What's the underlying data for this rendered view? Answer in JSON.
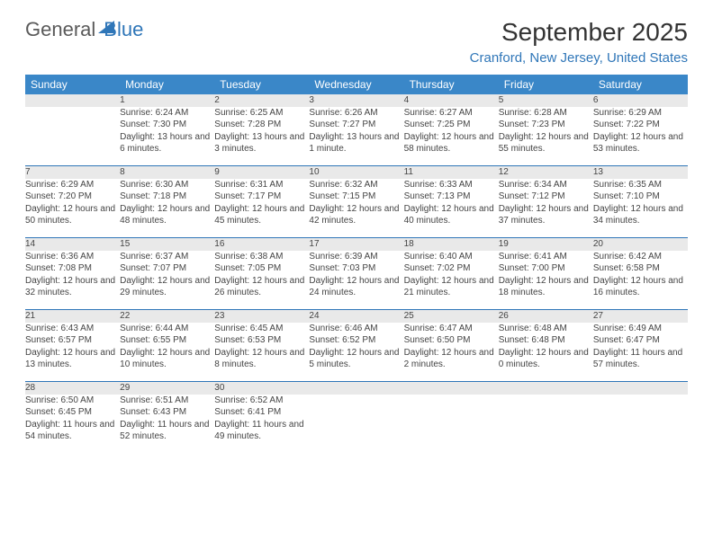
{
  "brand": {
    "part1": "General",
    "part2": "Blue"
  },
  "title": "September 2025",
  "location": "Cranford, New Jersey, United States",
  "weekdays": [
    "Sunday",
    "Monday",
    "Tuesday",
    "Wednesday",
    "Thursday",
    "Friday",
    "Saturday"
  ],
  "colors": {
    "header_bg": "#3a87c8",
    "header_fg": "#ffffff",
    "daynum_bg": "#e9e9e9",
    "rule": "#2f76b8",
    "accent": "#2f76b8"
  },
  "typography": {
    "title_fontsize": 28,
    "location_fontsize": 15,
    "weekday_fontsize": 12,
    "cell_fontsize": 10
  },
  "weeks": [
    [
      null,
      {
        "n": "1",
        "sunrise": "6:24 AM",
        "sunset": "7:30 PM",
        "daylight": "13 hours and 6 minutes."
      },
      {
        "n": "2",
        "sunrise": "6:25 AM",
        "sunset": "7:28 PM",
        "daylight": "13 hours and 3 minutes."
      },
      {
        "n": "3",
        "sunrise": "6:26 AM",
        "sunset": "7:27 PM",
        "daylight": "13 hours and 1 minute."
      },
      {
        "n": "4",
        "sunrise": "6:27 AM",
        "sunset": "7:25 PM",
        "daylight": "12 hours and 58 minutes."
      },
      {
        "n": "5",
        "sunrise": "6:28 AM",
        "sunset": "7:23 PM",
        "daylight": "12 hours and 55 minutes."
      },
      {
        "n": "6",
        "sunrise": "6:29 AM",
        "sunset": "7:22 PM",
        "daylight": "12 hours and 53 minutes."
      }
    ],
    [
      {
        "n": "7",
        "sunrise": "6:29 AM",
        "sunset": "7:20 PM",
        "daylight": "12 hours and 50 minutes."
      },
      {
        "n": "8",
        "sunrise": "6:30 AM",
        "sunset": "7:18 PM",
        "daylight": "12 hours and 48 minutes."
      },
      {
        "n": "9",
        "sunrise": "6:31 AM",
        "sunset": "7:17 PM",
        "daylight": "12 hours and 45 minutes."
      },
      {
        "n": "10",
        "sunrise": "6:32 AM",
        "sunset": "7:15 PM",
        "daylight": "12 hours and 42 minutes."
      },
      {
        "n": "11",
        "sunrise": "6:33 AM",
        "sunset": "7:13 PM",
        "daylight": "12 hours and 40 minutes."
      },
      {
        "n": "12",
        "sunrise": "6:34 AM",
        "sunset": "7:12 PM",
        "daylight": "12 hours and 37 minutes."
      },
      {
        "n": "13",
        "sunrise": "6:35 AM",
        "sunset": "7:10 PM",
        "daylight": "12 hours and 34 minutes."
      }
    ],
    [
      {
        "n": "14",
        "sunrise": "6:36 AM",
        "sunset": "7:08 PM",
        "daylight": "12 hours and 32 minutes."
      },
      {
        "n": "15",
        "sunrise": "6:37 AM",
        "sunset": "7:07 PM",
        "daylight": "12 hours and 29 minutes."
      },
      {
        "n": "16",
        "sunrise": "6:38 AM",
        "sunset": "7:05 PM",
        "daylight": "12 hours and 26 minutes."
      },
      {
        "n": "17",
        "sunrise": "6:39 AM",
        "sunset": "7:03 PM",
        "daylight": "12 hours and 24 minutes."
      },
      {
        "n": "18",
        "sunrise": "6:40 AM",
        "sunset": "7:02 PM",
        "daylight": "12 hours and 21 minutes."
      },
      {
        "n": "19",
        "sunrise": "6:41 AM",
        "sunset": "7:00 PM",
        "daylight": "12 hours and 18 minutes."
      },
      {
        "n": "20",
        "sunrise": "6:42 AM",
        "sunset": "6:58 PM",
        "daylight": "12 hours and 16 minutes."
      }
    ],
    [
      {
        "n": "21",
        "sunrise": "6:43 AM",
        "sunset": "6:57 PM",
        "daylight": "12 hours and 13 minutes."
      },
      {
        "n": "22",
        "sunrise": "6:44 AM",
        "sunset": "6:55 PM",
        "daylight": "12 hours and 10 minutes."
      },
      {
        "n": "23",
        "sunrise": "6:45 AM",
        "sunset": "6:53 PM",
        "daylight": "12 hours and 8 minutes."
      },
      {
        "n": "24",
        "sunrise": "6:46 AM",
        "sunset": "6:52 PM",
        "daylight": "12 hours and 5 minutes."
      },
      {
        "n": "25",
        "sunrise": "6:47 AM",
        "sunset": "6:50 PM",
        "daylight": "12 hours and 2 minutes."
      },
      {
        "n": "26",
        "sunrise": "6:48 AM",
        "sunset": "6:48 PM",
        "daylight": "12 hours and 0 minutes."
      },
      {
        "n": "27",
        "sunrise": "6:49 AM",
        "sunset": "6:47 PM",
        "daylight": "11 hours and 57 minutes."
      }
    ],
    [
      {
        "n": "28",
        "sunrise": "6:50 AM",
        "sunset": "6:45 PM",
        "daylight": "11 hours and 54 minutes."
      },
      {
        "n": "29",
        "sunrise": "6:51 AM",
        "sunset": "6:43 PM",
        "daylight": "11 hours and 52 minutes."
      },
      {
        "n": "30",
        "sunrise": "6:52 AM",
        "sunset": "6:41 PM",
        "daylight": "11 hours and 49 minutes."
      },
      null,
      null,
      null,
      null
    ]
  ],
  "labels": {
    "sunrise": "Sunrise: ",
    "sunset": "Sunset: ",
    "daylight": "Daylight: "
  }
}
